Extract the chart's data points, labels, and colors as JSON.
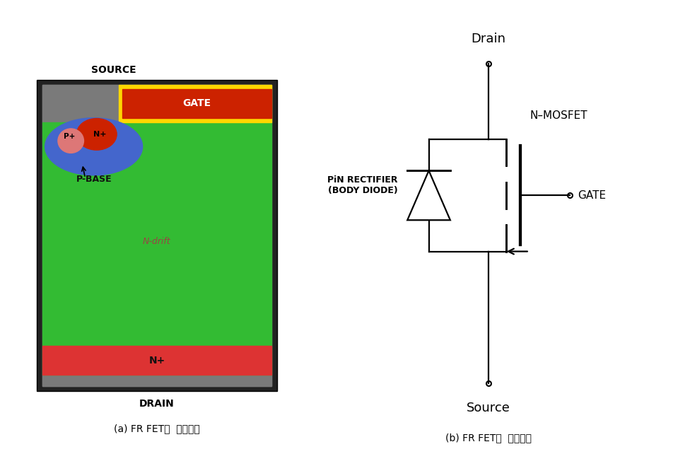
{
  "bg_color": "#ffffff",
  "left_panel": {
    "source_label": "SOURCE",
    "drain_label": "DRAIN",
    "gate_label": "GATE",
    "pbase_label": "P-BASE",
    "ndrift_label": "N-drift",
    "nplus_top_label": "N+",
    "nplus_bot_label": "N+",
    "pplus_label": "P+",
    "colors": {
      "outer_gray": "#7a7a7a",
      "border_dark": "#222222",
      "gate_yellow": "#FFD700",
      "gate_red": "#CC2200",
      "green_body": "#33BB33",
      "blue_pbase": "#4466CC",
      "red_nplus_top": "#CC2200",
      "red_nplus_bot": "#DD3333",
      "pink_pplus": "#DD7777"
    }
  },
  "right_panel": {
    "drain_label": "Drain",
    "source_label": "Source",
    "gate_label": "GATE",
    "nmosfet_label": "N–MOSFET",
    "pin_label": "PiN RECTIFIER\n(BODY DIODE)"
  },
  "caption_left": "(a) FR FET의  기본구조",
  "caption_right": "(b) FR FET의  등가회로"
}
